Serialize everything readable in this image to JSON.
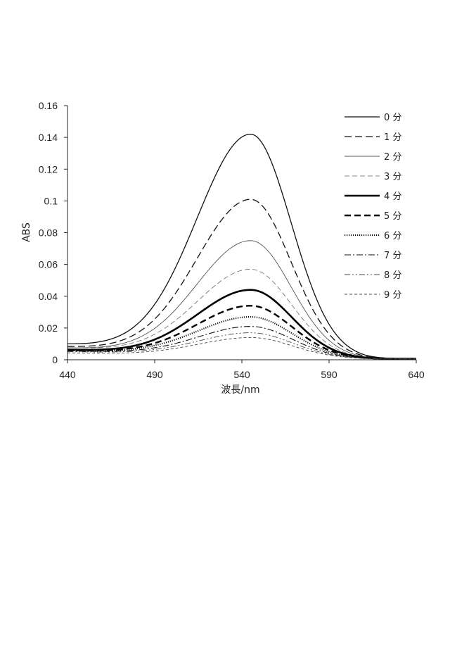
{
  "chart_data": {
    "type": "line",
    "title": "",
    "xlabel": "波長/nm",
    "ylabel": "ABS",
    "xlim": [
      440,
      640
    ],
    "ylim": [
      0,
      0.16
    ],
    "xticks": [
      "440",
      "490",
      "540",
      "590",
      "640"
    ],
    "yticks": [
      "0",
      "0.02",
      "0.04",
      "0.06",
      "0.08",
      "0.1",
      "0.12",
      "0.14",
      "0.16"
    ],
    "legend_position": "top-right",
    "peak_wavelength": 545,
    "series": [
      {
        "name": "0 分",
        "label": "0",
        "style": "solid",
        "start": 0.012,
        "peak": 0.142
      },
      {
        "name": "1 分",
        "label": "1",
        "style": "long-dash",
        "start": 0.01,
        "peak": 0.101
      },
      {
        "name": "2 分",
        "label": "2",
        "style": "thin-gray",
        "start": 0.009,
        "peak": 0.075
      },
      {
        "name": "3 分",
        "label": "3",
        "style": "thin-dash",
        "start": 0.009,
        "peak": 0.057
      },
      {
        "name": "4 分",
        "label": "4",
        "style": "bold",
        "start": 0.0075,
        "peak": 0.044
      },
      {
        "name": "5 分",
        "label": "5",
        "style": "bold-dash",
        "start": 0.007,
        "peak": 0.034
      },
      {
        "name": "6 分",
        "label": "6",
        "style": "dotted",
        "start": 0.007,
        "peak": 0.027
      },
      {
        "name": "7 分",
        "label": "7",
        "style": "dash-dot",
        "start": 0.0065,
        "peak": 0.021
      },
      {
        "name": "8 分",
        "label": "8",
        "style": "dash-dot-dot",
        "start": 0.006,
        "peak": 0.017
      },
      {
        "name": "9 分",
        "label": "9",
        "style": "fine-dash",
        "start": 0.005,
        "peak": 0.014
      }
    ],
    "unit_suffix": "分"
  }
}
